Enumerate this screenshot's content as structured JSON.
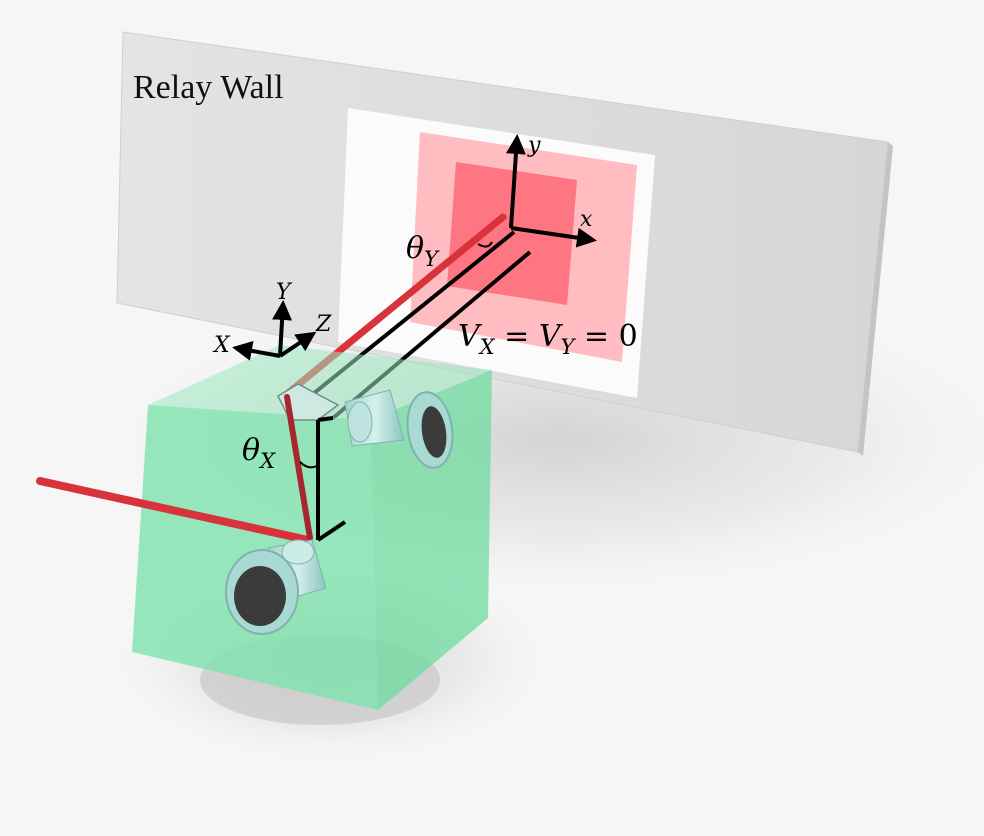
{
  "wall": {
    "title": "Relay Wall",
    "axes": {
      "x": "x",
      "y": "y"
    },
    "angle_y": "θ",
    "angle_y_sub": "Y",
    "equation": {
      "v": "V",
      "sub_x": "X",
      "eq": " = ",
      "sub_y": "Y",
      "rhs": " = 0"
    }
  },
  "device": {
    "axes": {
      "x": "X",
      "y": "Y",
      "z": "Z"
    },
    "angle_x": "θ",
    "angle_x_sub": "X"
  },
  "colors": {
    "wall": "#dcdcdc",
    "wall_panel": "#fbfbfb",
    "scan_outer": "#ffbcc1",
    "scan_inner": "#ff7683",
    "laser": "#d8323b",
    "cube": "#7de3ad",
    "lens": "#bfe3df"
  }
}
